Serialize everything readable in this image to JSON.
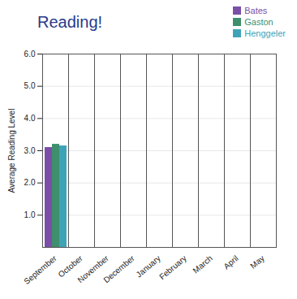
{
  "chart_data": {
    "type": "bar",
    "title": "Reading!",
    "y_label": "Average Reading Level",
    "categories": [
      "September",
      "October",
      "November",
      "December",
      "January",
      "February",
      "March",
      "April",
      "May"
    ],
    "series": [
      {
        "name": "Bates",
        "color": "#7b4fa8",
        "values": [
          3.1,
          null,
          null,
          null,
          null,
          null,
          null,
          null,
          null
        ]
      },
      {
        "name": "Gaston",
        "color": "#3d8f6e",
        "values": [
          3.2,
          null,
          null,
          null,
          null,
          null,
          null,
          null,
          null
        ]
      },
      {
        "name": "Henggeler",
        "color": "#3fa3b8",
        "values": [
          3.15,
          null,
          null,
          null,
          null,
          null,
          null,
          null,
          null
        ]
      }
    ],
    "ylim": [
      0,
      6
    ],
    "yticks": [
      1,
      2,
      3,
      4,
      5,
      6
    ],
    "grid": true,
    "legend": "top-right"
  }
}
